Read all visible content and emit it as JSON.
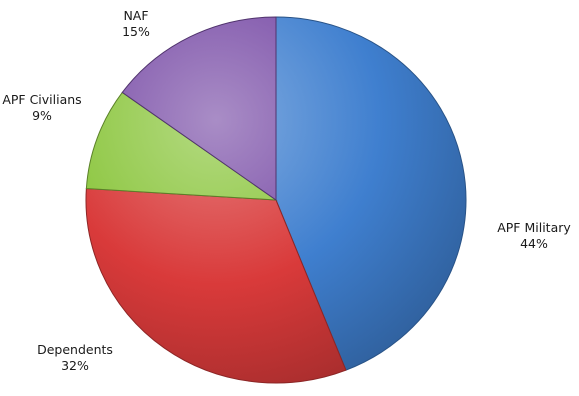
{
  "chart_data": {
    "type": "pie",
    "title": "",
    "slices": [
      {
        "name": "APF Military",
        "value": 44,
        "label": "44%",
        "color": "#3f7fcf"
      },
      {
        "name": "Dependents",
        "value": 32,
        "label": "32%",
        "color": "#d93a3a"
      },
      {
        "name": "APF Civilians",
        "value": 9,
        "label": "9%",
        "color": "#8cc63f"
      },
      {
        "name": "NAF",
        "value": 15,
        "label": "15%",
        "color": "#7b4fa8"
      }
    ],
    "start": "12 o'clock",
    "direction": "clockwise",
    "style": "3d-shaded",
    "legend": "none (category labels beside slices)"
  }
}
